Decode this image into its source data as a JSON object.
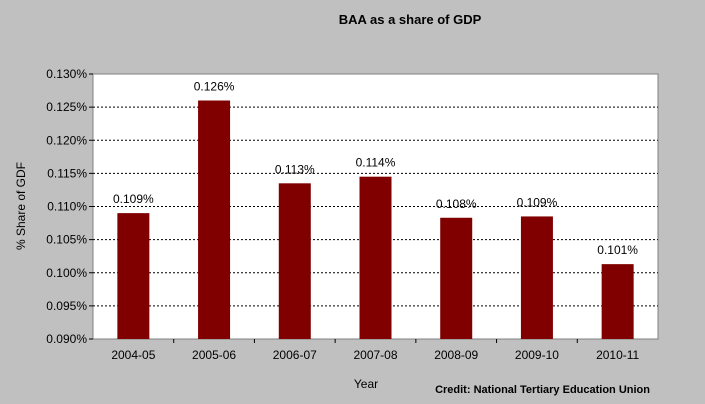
{
  "chart_data": {
    "type": "bar",
    "title": "BAA as a share of GDP",
    "xlabel": "Year",
    "ylabel": "% Share of  GDF",
    "categories": [
      "2004-05",
      "2005-06",
      "2006-07",
      "2007-08",
      "2008-09",
      "2009-10",
      "2010-11"
    ],
    "values": [
      0.109,
      0.126,
      0.1135,
      0.1145,
      0.1083,
      0.1085,
      0.1013
    ],
    "data_labels": [
      "0.109%",
      "0.126%",
      "0.113%",
      "0.114%",
      "0.108%",
      "0.109%",
      "0.101%"
    ],
    "ylim": [
      0.09,
      0.13
    ],
    "yticks": [
      0.09,
      0.095,
      0.1,
      0.105,
      0.11,
      0.115,
      0.12,
      0.125,
      0.13
    ],
    "ytick_labels": [
      "0.090%",
      "0.095%",
      "0.100%",
      "0.105%",
      "0.110%",
      "0.115%",
      "0.120%",
      "0.125%",
      "0.130%"
    ],
    "grid": true,
    "legend": "none",
    "bar_color": "#800000",
    "plot_background": "#ffffff",
    "figure_background": "#c0c0c0"
  },
  "credit": "Credit: National Tertiary Education Union"
}
